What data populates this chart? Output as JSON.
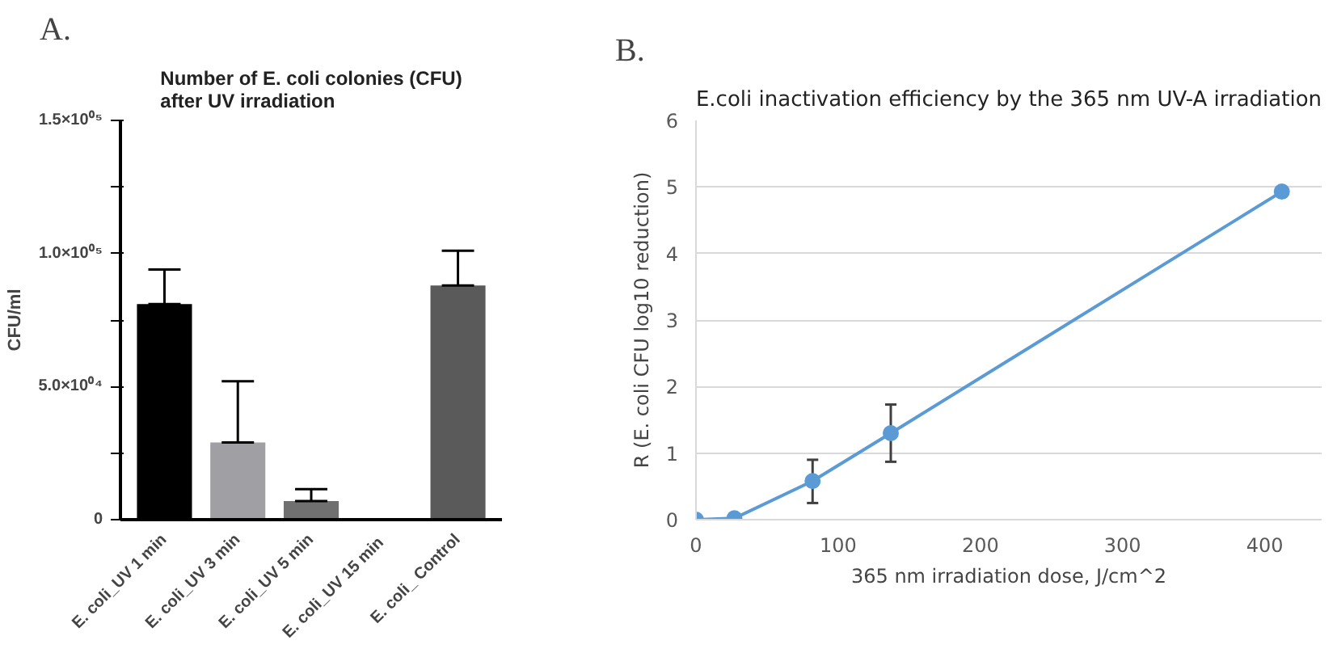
{
  "chart_data": [
    {
      "type": "bar",
      "title": "Number of E. coli colonies (CFU)\nafter UV irradiation",
      "ylabel": "CFU/ml",
      "annotations": [
        "A."
      ],
      "categories": [
        "E. coli_UV 1 min",
        "E. coli_UV 3 min",
        "E. coli_UV 5 min",
        "E. coli_UV 15  min",
        "E. coli_ Control"
      ],
      "values": [
        81000,
        29000,
        7000,
        0,
        88000
      ],
      "colors": [
        "#000000",
        "#a0a0a4",
        "#707070",
        "#606060",
        "#5a5a5a"
      ],
      "errors": [
        [
          81000,
          94000
        ],
        [
          29000,
          52000
        ],
        [
          7000,
          11500
        ],
        null,
        [
          88000,
          101000
        ]
      ],
      "ylim": [
        0,
        150000
      ],
      "yticks": [
        {
          "value": 0,
          "label": "0"
        },
        {
          "value": 25000,
          "label": null
        },
        {
          "value": 50000,
          "label": "5.0×10⁰⁴"
        },
        {
          "value": 75000,
          "label": null
        },
        {
          "value": 100000,
          "label": "1.0×10⁰⁵"
        },
        {
          "value": 125000,
          "label": null
        },
        {
          "value": 150000,
          "label": "1.5×10⁰⁵"
        }
      ],
      "grid": false
    },
    {
      "type": "line",
      "title": "E.coli inactivation efficiency by the 365 nm UV-A irradiation",
      "xlabel": "365 nm irradiation dose, J/cm^2",
      "ylabel": "R (E. coli CFU log10 reduction)",
      "annotations": [
        "B."
      ],
      "x": [
        0,
        27,
        82,
        137,
        412
      ],
      "series": [
        {
          "color": "#5b9bd5",
          "values": [
            0,
            0.02,
            0.58,
            1.3,
            4.93
          ],
          "errors": [
            null,
            null,
            [
              0.25,
              0.9
            ],
            [
              0.87,
              1.73
            ],
            null
          ]
        }
      ],
      "xlim": [
        0,
        440
      ],
      "xticks": [
        0,
        100,
        200,
        300,
        400
      ],
      "ylim": [
        0,
        6
      ],
      "yticks": [
        0,
        1,
        2,
        3,
        4,
        5,
        6
      ],
      "grid": "y",
      "marker": "circle",
      "line_style": "solid"
    }
  ]
}
